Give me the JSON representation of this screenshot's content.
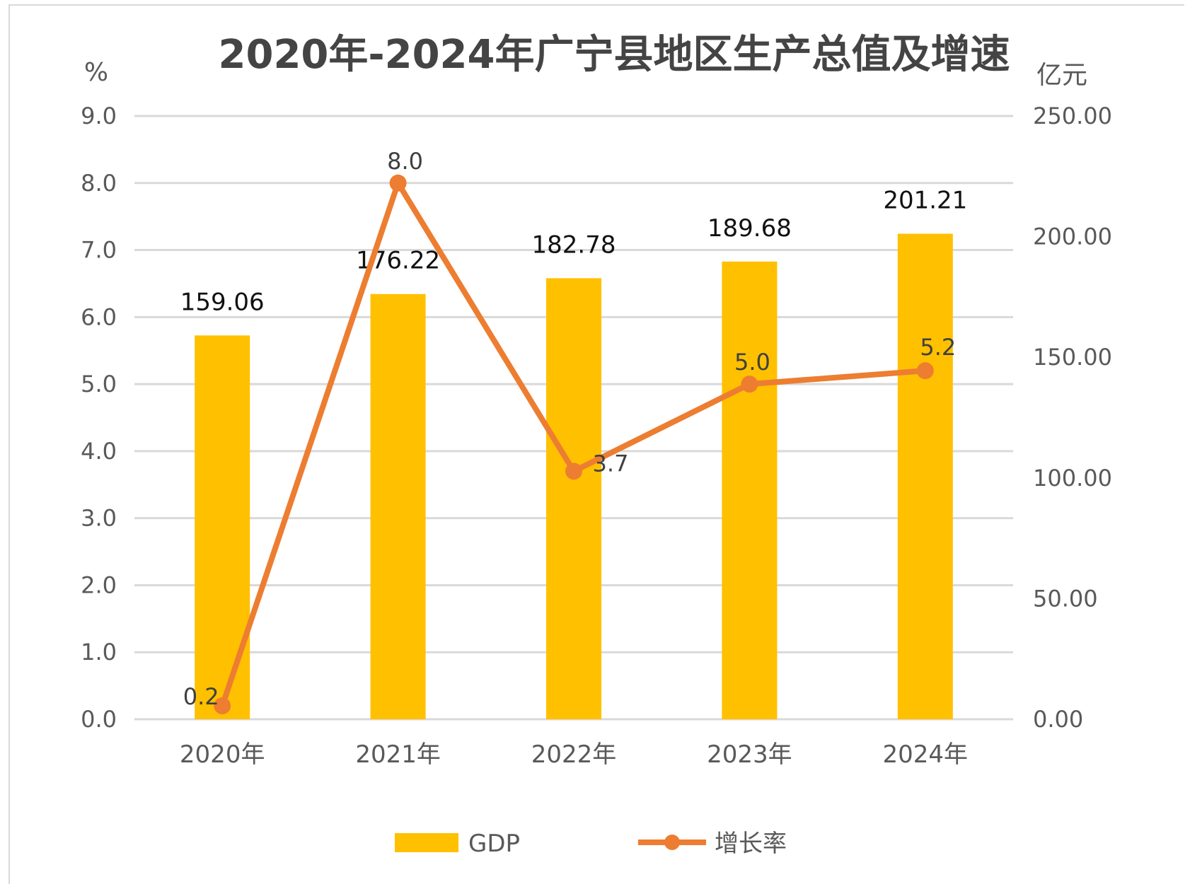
{
  "chart_data": {
    "type": "bar",
    "title": "2020年-2024年广宁县地区生产总值及增速",
    "categories": [
      "2020年",
      "2021年",
      "2022年",
      "2023年",
      "2024年"
    ],
    "left_axis_unit": "%",
    "right_axis_unit": "亿元",
    "y_left_lim": [
      0,
      9
    ],
    "y_right_lim": [
      0,
      250
    ],
    "y_left_ticks": [
      "0.0",
      "1.0",
      "2.0",
      "3.0",
      "4.0",
      "5.0",
      "6.0",
      "7.0",
      "8.0",
      "9.0"
    ],
    "y_right_ticks": [
      "0.00",
      "50.00",
      "100.00",
      "150.00",
      "200.00",
      "250.00"
    ],
    "grid": true,
    "legend_position": "bottom",
    "series": [
      {
        "name": "GDP",
        "type": "bar",
        "axis": "right",
        "color": "#FFC000",
        "values": [
          159.06,
          176.22,
          182.78,
          189.68,
          201.21
        ],
        "labels": [
          "159.06",
          "176.22",
          "182.78",
          "189.68",
          "201.21"
        ]
      },
      {
        "name": "增长率",
        "type": "line",
        "axis": "left",
        "color": "#ED7D31",
        "values": [
          0.2,
          8.0,
          3.7,
          5.0,
          5.2
        ],
        "labels": [
          "0.2",
          "8.0",
          "3.7",
          "5.0",
          "5.2"
        ]
      }
    ]
  }
}
